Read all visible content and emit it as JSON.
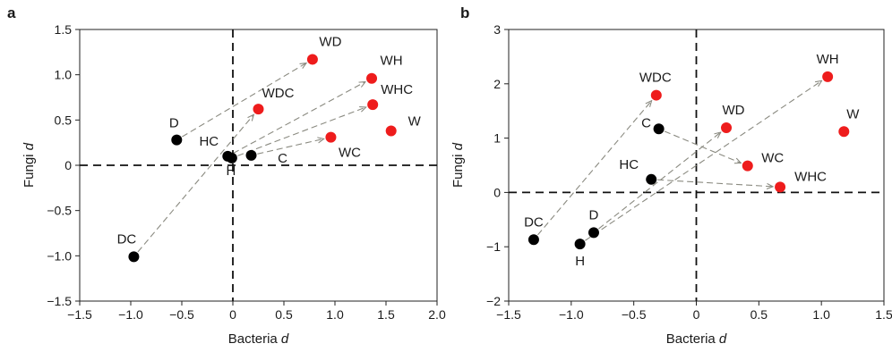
{
  "colors": {
    "black_point": "#000000",
    "red_point": "#ee1c1c",
    "arrow": "#8a8a80",
    "zero_line": "#111111"
  },
  "chart_data": [
    {
      "panel": "a",
      "type": "scatter",
      "xlabel": "Bacteria d",
      "ylabel": "Fungi d",
      "xlim": [
        -1.5,
        2.0
      ],
      "ylim": [
        -1.5,
        1.5
      ],
      "xticks": [
        "−1.5",
        "−1.0",
        "−0.5",
        "0",
        "0.5",
        "1.0",
        "1.5",
        "2.0"
      ],
      "xtick_values": [
        -1.5,
        -1.0,
        -0.5,
        0,
        0.5,
        1.0,
        1.5,
        2.0
      ],
      "yticks": [
        "−1.5",
        "−1.0",
        "−0.5",
        "0",
        "0.5",
        "1.0",
        "1.5"
      ],
      "ytick_values": [
        -1.5,
        -1.0,
        -0.5,
        0,
        0.5,
        1.0,
        1.5
      ],
      "grid": false,
      "points": [
        {
          "label": "D",
          "x": -0.55,
          "y": 0.28,
          "color": "black"
        },
        {
          "label": "DC",
          "x": -0.97,
          "y": -1.01,
          "color": "black"
        },
        {
          "label": "HC",
          "x": -0.05,
          "y": 0.1,
          "color": "black"
        },
        {
          "label": "H",
          "x": -0.01,
          "y": 0.08,
          "color": "black"
        },
        {
          "label": "C",
          "x": 0.18,
          "y": 0.11,
          "color": "black"
        },
        {
          "label": "WD",
          "x": 0.78,
          "y": 1.17,
          "color": "red"
        },
        {
          "label": "WH",
          "x": 1.36,
          "y": 0.96,
          "color": "red"
        },
        {
          "label": "WDC",
          "x": 0.25,
          "y": 0.62,
          "color": "red"
        },
        {
          "label": "WHC",
          "x": 1.37,
          "y": 0.67,
          "color": "red"
        },
        {
          "label": "W",
          "x": 1.55,
          "y": 0.38,
          "color": "red"
        },
        {
          "label": "WC",
          "x": 0.96,
          "y": 0.31,
          "color": "red"
        }
      ],
      "arrows": [
        {
          "from": "D",
          "to": "WD"
        },
        {
          "from": "DC",
          "to": "WDC"
        },
        {
          "from": "HC",
          "to": "WH"
        },
        {
          "from": "H",
          "to": "WHC"
        },
        {
          "from": "C",
          "to": "WC"
        }
      ]
    },
    {
      "panel": "b",
      "type": "scatter",
      "xlabel": "Bacteria d",
      "ylabel": "Fungi d",
      "xlim": [
        -1.5,
        1.5
      ],
      "ylim": [
        -2,
        3
      ],
      "xticks": [
        "−1.5",
        "−1.0",
        "−0.5",
        "0",
        "0.5",
        "1.0",
        "1.5"
      ],
      "xtick_values": [
        -1.5,
        -1.0,
        -0.5,
        0,
        0.5,
        1.0,
        1.5
      ],
      "yticks": [
        "−2",
        "−1",
        "0",
        "1",
        "2",
        "3"
      ],
      "ytick_values": [
        -2,
        -1,
        0,
        1,
        2,
        3
      ],
      "grid": false,
      "points": [
        {
          "label": "DC",
          "x": -1.3,
          "y": -0.87,
          "color": "black"
        },
        {
          "label": "D",
          "x": -0.82,
          "y": -0.74,
          "color": "black"
        },
        {
          "label": "H",
          "x": -0.93,
          "y": -0.95,
          "color": "black"
        },
        {
          "label": "C",
          "x": -0.3,
          "y": 1.17,
          "color": "black"
        },
        {
          "label": "HC",
          "x": -0.36,
          "y": 0.24,
          "color": "black"
        },
        {
          "label": "WDC",
          "x": -0.32,
          "y": 1.79,
          "color": "red"
        },
        {
          "label": "WD",
          "x": 0.24,
          "y": 1.19,
          "color": "red"
        },
        {
          "label": "WH",
          "x": 1.05,
          "y": 2.13,
          "color": "red"
        },
        {
          "label": "W",
          "x": 1.18,
          "y": 1.12,
          "color": "red"
        },
        {
          "label": "WC",
          "x": 0.41,
          "y": 0.49,
          "color": "red"
        },
        {
          "label": "WHC",
          "x": 0.67,
          "y": 0.1,
          "color": "red"
        }
      ],
      "arrows": [
        {
          "from": "DC",
          "to": "WDC"
        },
        {
          "from": "D",
          "to": "WD"
        },
        {
          "from": "H",
          "to": "WH"
        },
        {
          "from": "C",
          "to": "WC"
        },
        {
          "from": "HC",
          "to": "WHC"
        }
      ]
    }
  ]
}
